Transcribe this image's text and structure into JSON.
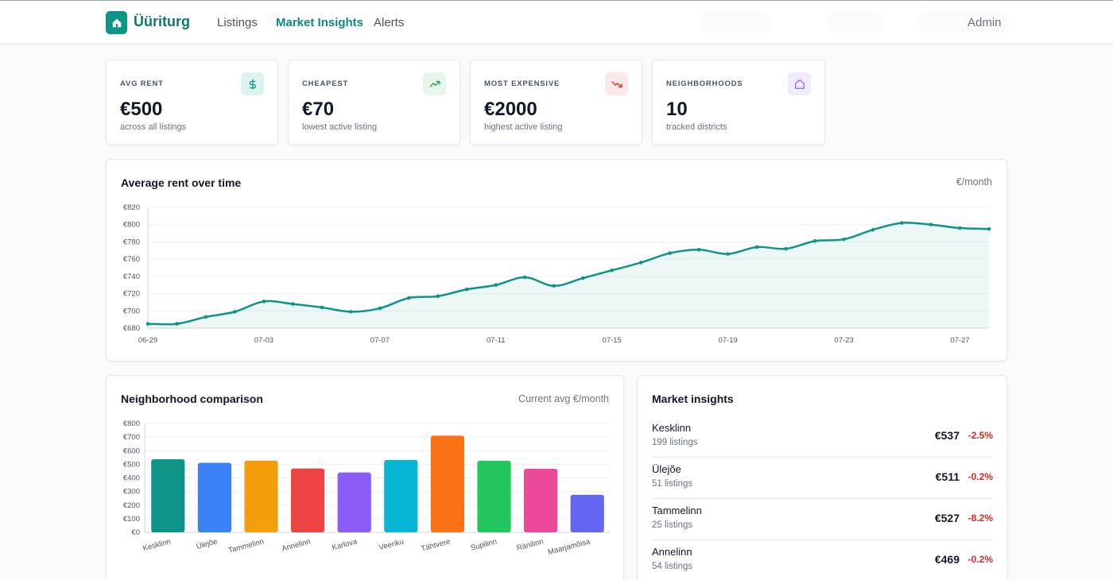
{
  "header": {
    "brand": "Üüriturg",
    "nav": [
      "Listings",
      "Market Insights",
      "Alerts"
    ],
    "active_nav": "Market Insights",
    "user": "Admin"
  },
  "stats": [
    {
      "label": "AVG RENT",
      "value": "€500",
      "sub": "across all listings",
      "icon": "dollar-icon",
      "icon_color": "#0f9488",
      "icon_bg": "#ddf3ef"
    },
    {
      "label": "CHEAPEST",
      "value": "€70",
      "sub": "lowest active listing",
      "icon": "trending-up-icon",
      "icon_color": "#16a34a",
      "icon_bg": "#e6f6ec"
    },
    {
      "label": "MOST EXPENSIVE",
      "value": "€2000",
      "sub": "highest active listing",
      "icon": "trending-down-icon",
      "icon_color": "#dc2626",
      "icon_bg": "#fde8e8"
    },
    {
      "label": "NEIGHBORHOODS",
      "value": "10",
      "sub": "tracked districts",
      "icon": "home-icon",
      "icon_color": "#8b5cf6",
      "icon_bg": "#f0ebfe"
    }
  ],
  "line_panel": {
    "title": "Average rent over time",
    "unit": "€/month"
  },
  "bar_panel": {
    "title": "Neighborhood comparison",
    "unit": "Current avg €/month"
  },
  "insights_panel": {
    "title": "Market insights",
    "rows": [
      {
        "name": "Kesklinn",
        "count": "199 listings",
        "price": "€537",
        "change": "-2.5%"
      },
      {
        "name": "Ülejõe",
        "count": "51 listings",
        "price": "€511",
        "change": "-0.2%"
      },
      {
        "name": "Tammelinn",
        "count": "25 listings",
        "price": "€527",
        "change": "-8.2%"
      },
      {
        "name": "Annelinn",
        "count": "54 listings",
        "price": "€469",
        "change": "-0.2%"
      }
    ]
  },
  "colors": {
    "accent": "#0f9488",
    "negative": "#dc2626"
  },
  "chart_data": [
    {
      "type": "area",
      "title": "Average rent over time",
      "ylabel": "€/month",
      "x": [
        "06-29",
        "06-30",
        "07-01",
        "07-02",
        "07-03",
        "07-04",
        "07-05",
        "07-06",
        "07-07",
        "07-08",
        "07-09",
        "07-10",
        "07-11",
        "07-12",
        "07-13",
        "07-14",
        "07-15",
        "07-16",
        "07-17",
        "07-18",
        "07-19",
        "07-20",
        "07-21",
        "07-22",
        "07-23",
        "07-24",
        "07-25",
        "07-26",
        "07-27",
        "07-28"
      ],
      "xticks": [
        "06-29",
        "07-03",
        "07-07",
        "07-11",
        "07-15",
        "07-19",
        "07-23",
        "07-27"
      ],
      "values": [
        685,
        685,
        693,
        699,
        711,
        708,
        704,
        699,
        703,
        715,
        717,
        725,
        730,
        739,
        729,
        738,
        747,
        756,
        767,
        771,
        766,
        774,
        772,
        781,
        783,
        794,
        802,
        800,
        796,
        795
      ],
      "yticks": [
        "€680",
        "€700",
        "€720",
        "€740",
        "€760",
        "€780",
        "€800",
        "€820"
      ],
      "ylim": [
        680,
        820
      ],
      "grid": true
    },
    {
      "type": "bar",
      "title": "Neighborhood comparison",
      "ylabel": "Current avg €/month",
      "categories": [
        "Kesklinn",
        "Ülejõe",
        "Tammelinn",
        "Annelinn",
        "Karlova",
        "Veeriku",
        "Tähtvere",
        "Supilinn",
        "Ränilinn",
        "Maarjamõisa"
      ],
      "values": [
        537,
        511,
        527,
        469,
        440,
        532,
        710,
        526,
        467,
        276
      ],
      "colors": [
        "#0f9488",
        "#3b82f6",
        "#f59e0b",
        "#ef4444",
        "#8b5cf6",
        "#06b6d4",
        "#f97316",
        "#22c55e",
        "#ec4899",
        "#6366f1"
      ],
      "yticks": [
        "€0",
        "€100",
        "€200",
        "€300",
        "€400",
        "€500",
        "€600",
        "€700",
        "€800"
      ],
      "ylim": [
        0,
        800
      ],
      "grid": true
    }
  ]
}
